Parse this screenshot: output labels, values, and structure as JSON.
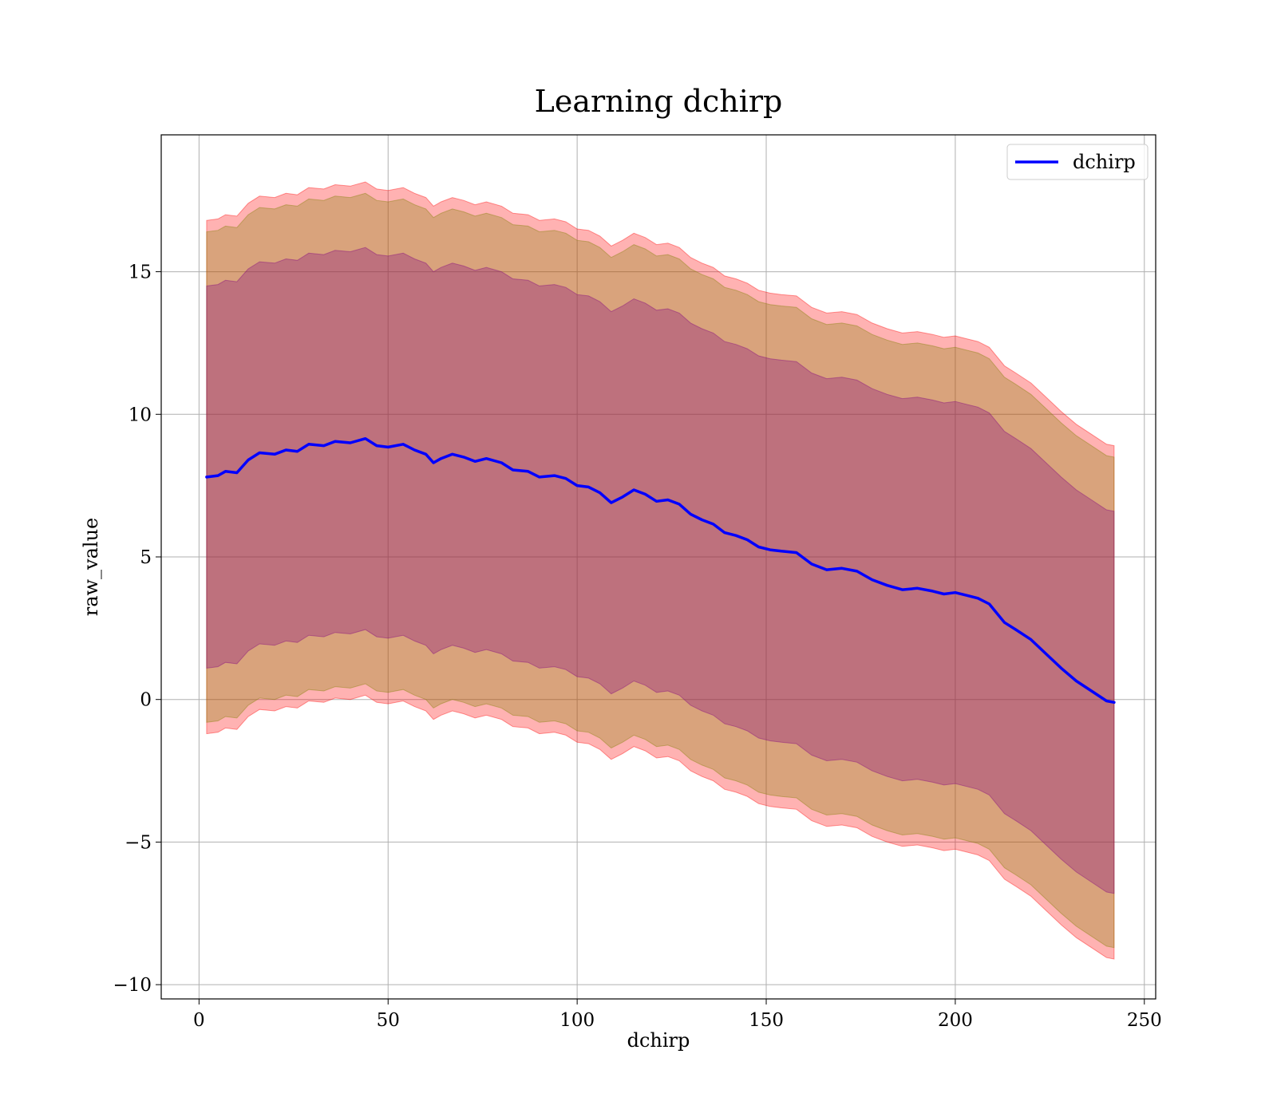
{
  "chart_data": {
    "type": "line",
    "title": "Learning dchirp",
    "xlabel": "dchirp",
    "ylabel": "raw_value",
    "xlim": [
      -10,
      253
    ],
    "ylim": [
      -10.5,
      19.8
    ],
    "x_ticks": [
      0,
      50,
      100,
      150,
      200,
      250
    ],
    "x_tick_labels": [
      "0",
      "50",
      "100",
      "150",
      "200",
      "250"
    ],
    "y_ticks": [
      -10,
      -5,
      0,
      5,
      10,
      15
    ],
    "y_tick_labels": [
      "−10",
      "−5",
      "0",
      "5",
      "10",
      "15"
    ],
    "grid": true,
    "legend_position": "top-right",
    "series": [
      {
        "name": "dchirp",
        "color": "#0000ff",
        "x": [
          2,
          5,
          7,
          10,
          13,
          16,
          20,
          23,
          26,
          29,
          33,
          36,
          40,
          44,
          47,
          50,
          54,
          57,
          60,
          62,
          64,
          67,
          70,
          73,
          76,
          80,
          83,
          87,
          90,
          94,
          97,
          100,
          103,
          106,
          109,
          112,
          115,
          118,
          121,
          124,
          127,
          130,
          133,
          136,
          139,
          142,
          145,
          148,
          151,
          154,
          158,
          162,
          166,
          170,
          174,
          178,
          182,
          186,
          190,
          194,
          197,
          200,
          203,
          206,
          209,
          213,
          216,
          220,
          224,
          228,
          232,
          236,
          240,
          242
        ],
        "y": [
          7.8,
          7.85,
          8.0,
          7.95,
          8.4,
          8.65,
          8.6,
          8.75,
          8.7,
          8.95,
          8.9,
          9.05,
          9.0,
          9.15,
          8.9,
          8.85,
          8.95,
          8.75,
          8.6,
          8.3,
          8.45,
          8.6,
          8.5,
          8.35,
          8.45,
          8.3,
          8.05,
          8.0,
          7.8,
          7.85,
          7.75,
          7.5,
          7.45,
          7.25,
          6.9,
          7.1,
          7.35,
          7.2,
          6.95,
          7.0,
          6.85,
          6.5,
          6.3,
          6.15,
          5.85,
          5.75,
          5.6,
          5.35,
          5.25,
          5.2,
          5.15,
          4.75,
          4.55,
          4.6,
          4.5,
          4.2,
          4.0,
          3.85,
          3.9,
          3.8,
          3.7,
          3.75,
          3.65,
          3.55,
          3.35,
          2.7,
          2.45,
          2.1,
          1.6,
          1.1,
          0.65,
          0.3,
          -0.05,
          -0.1
        ]
      }
    ],
    "bands": [
      {
        "color": "#ff0000",
        "opacity": 0.3,
        "lower_offset": -9.0,
        "upper_offset": 9.0
      },
      {
        "color": "#808000",
        "opacity": 0.3,
        "lower_offset": -8.6,
        "upper_offset": 8.6
      },
      {
        "color": "#800080",
        "opacity": 0.3,
        "lower_offset": -6.7,
        "upper_offset": 6.7
      }
    ]
  }
}
